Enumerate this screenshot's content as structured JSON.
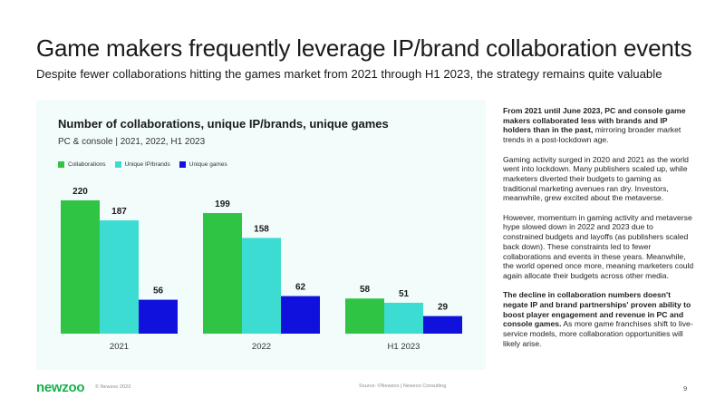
{
  "header": {
    "title": "Game makers frequently leverage IP/brand collaboration events",
    "subtitle": "Despite fewer collaborations hitting the games market from 2021 through H1 2023, the strategy remains quite valuable"
  },
  "chart_data": {
    "type": "bar",
    "title": "Number of collaborations, unique IP/brands, unique games",
    "subtitle": "PC & console | 2021, 2022, H1 2023",
    "categories": [
      "2021",
      "2022",
      "H1 2023"
    ],
    "series": [
      {
        "name": "Collaborations",
        "values": [
          220,
          199,
          58
        ],
        "color": "#2fc444"
      },
      {
        "name": "Unique IP/brands",
        "values": [
          187,
          158,
          51
        ],
        "color": "#3ddcd2"
      },
      {
        "name": "Unique games",
        "values": [
          56,
          62,
          29
        ],
        "color": "#1111dd"
      }
    ],
    "xlabel": "",
    "ylabel": "",
    "ylim": [
      0,
      220
    ],
    "legend": "top-left",
    "grid": false
  },
  "side_text": {
    "p1_bold": "From 2021 until June 2023, PC and console game makers collaborated less with brands and IP holders than in the past,",
    "p1_rest": " mirroring broader market trends in a post-lockdown age.",
    "p2": "Gaming activity surged in 2020 and 2021 as the world went into lockdown. Many publishers scaled up, while marketers diverted their budgets to gaming as traditional marketing avenues ran dry. Investors, meanwhile, grew excited about the metaverse.",
    "p3": "However, momentum in gaming activity and metaverse hype slowed down in 2022 and 2023 due to constrained budgets and layoffs (as publishers scaled back down). These constraints led to fewer collaborations and events in these years. Meanwhile, the world opened once more, meaning marketers could again allocate their budgets across other media.",
    "p4_bold": "The decline in collaboration numbers doesn't negate IP and brand partnerships' proven ability to boost player engagement and revenue in PC and console games.",
    "p4_rest": " As more game franchises shift to live-service models, more collaboration opportunities will likely arise."
  },
  "footer": {
    "logo": "newzoo",
    "copyright": "© Newzoo 2023",
    "source": "Source: ©Newzoo | Newzoo Consulting",
    "page_number": "9"
  }
}
